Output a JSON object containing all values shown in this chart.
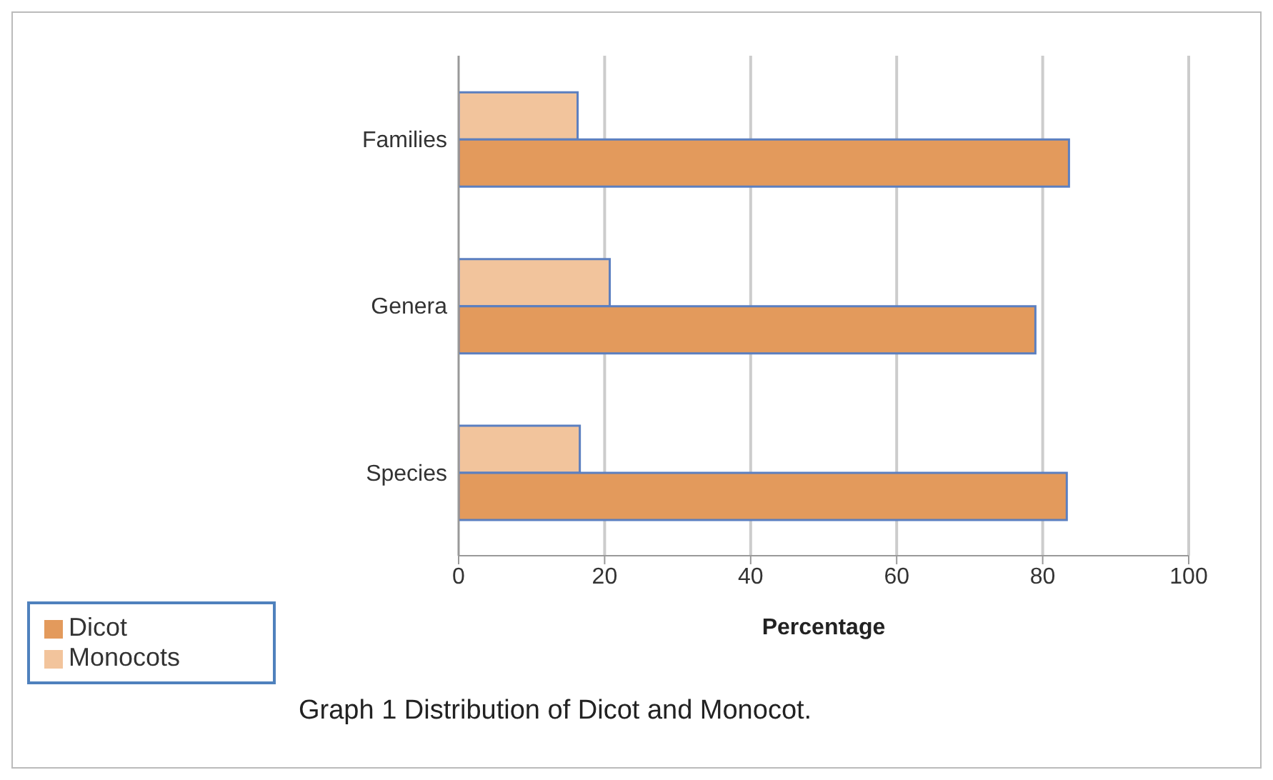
{
  "chart_data": {
    "type": "bar",
    "orientation": "horizontal",
    "title": "Graph 1  Distribution of Dicot and Monocot.",
    "xlabel": "Percentage",
    "categories": [
      "Families",
      "Genera",
      "Species"
    ],
    "series": [
      {
        "name": "Monocots",
        "color": "#f2c49c",
        "values": [
          16.3,
          20.7,
          16.6
        ]
      },
      {
        "name": "Dicot",
        "color": "#e39a5c",
        "values": [
          83.6,
          79.0,
          83.3
        ]
      }
    ],
    "xlim": [
      0,
      100
    ],
    "xticks": [
      0,
      20,
      40,
      60,
      80,
      100
    ],
    "grid": "x",
    "legend": "bottom left"
  }
}
